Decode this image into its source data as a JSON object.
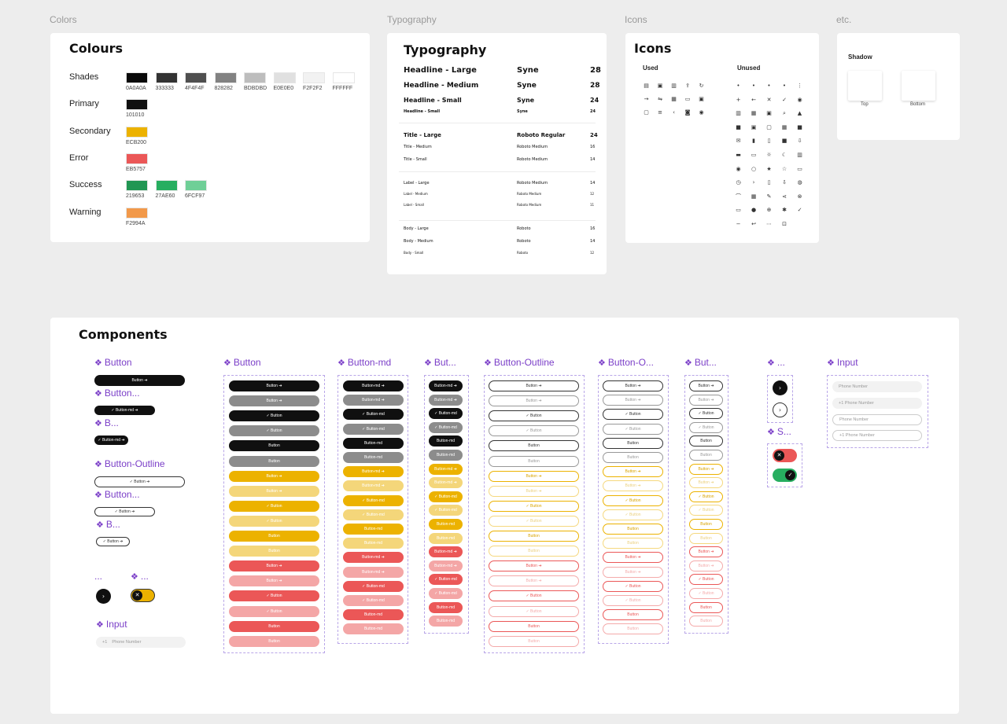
{
  "frame_labels": {
    "colors": "Colors",
    "typography": "Typography",
    "icons": "Icons",
    "etc": "etc."
  },
  "colours": {
    "title": "Colours",
    "rows": [
      {
        "name": "Shades",
        "swatches": [
          {
            "hex": "#0A0A0A",
            "label": "0A0A0A"
          },
          {
            "hex": "#333333",
            "label": "333333"
          },
          {
            "hex": "#4F4F4F",
            "label": "4F4F4F"
          },
          {
            "hex": "#828282",
            "label": "828282"
          },
          {
            "hex": "#BDBDBD",
            "label": "BDBDBD"
          },
          {
            "hex": "#E0E0E0",
            "label": "E0E0E0"
          },
          {
            "hex": "#F2F2F2",
            "label": "F2F2F2"
          },
          {
            "hex": "#FFFFFF",
            "label": "FFFFFF"
          }
        ]
      },
      {
        "name": "Primary",
        "swatches": [
          {
            "hex": "#101010",
            "label": "101010"
          }
        ]
      },
      {
        "name": "Secondary",
        "swatches": [
          {
            "hex": "#ECB200",
            "label": "ECB200"
          }
        ]
      },
      {
        "name": "Error",
        "swatches": [
          {
            "hex": "#EB5757",
            "label": "EB5757"
          }
        ]
      },
      {
        "name": "Success",
        "swatches": [
          {
            "hex": "#219653",
            "label": "219653"
          },
          {
            "hex": "#27AE60",
            "label": "27AE60"
          },
          {
            "hex": "#6FCF97",
            "label": "6FCF97"
          }
        ]
      },
      {
        "name": "Warning",
        "swatches": [
          {
            "hex": "#F2994A",
            "label": "F2994A"
          }
        ]
      }
    ]
  },
  "typography": {
    "title": "Typography",
    "groups": [
      [
        {
          "name": "Headline - Large",
          "font": "Syne",
          "size": "28",
          "fs": 10
        },
        {
          "name": "Headline - Medium",
          "font": "Syne",
          "size": "28",
          "fs": 9
        },
        {
          "name": "Headline - Small",
          "font": "Syne",
          "size": "24",
          "fs": 8
        },
        {
          "name": "Headline - Small",
          "font": "Syne",
          "size": "24",
          "fs": 5
        }
      ],
      [
        {
          "name": "Title - Large",
          "font": "Roboto Regular",
          "size": "24",
          "fs": 7
        },
        {
          "name": "Title - Medium",
          "font": "Roboto Medium",
          "size": "16",
          "fs": 5
        },
        {
          "name": "Title - Small",
          "font": "Roboto Medium",
          "size": "14",
          "fs": 5
        }
      ],
      [
        {
          "name": "Label - Large",
          "font": "Roboto Medium",
          "size": "14",
          "fs": 5
        },
        {
          "name": "Label - Medium",
          "font": "Roboto Medium",
          "size": "12",
          "fs": 4
        },
        {
          "name": "Label - Small",
          "font": "Roboto Medium",
          "size": "11",
          "fs": 4
        }
      ],
      [
        {
          "name": "Body - Large",
          "font": "Roboto",
          "size": "16",
          "fs": 5
        },
        {
          "name": "Body - Medium",
          "font": "Roboto",
          "size": "14",
          "fs": 5
        },
        {
          "name": "Body - Small",
          "font": "Roboto",
          "size": "12",
          "fs": 4
        }
      ]
    ]
  },
  "icons": {
    "title": "Icons",
    "used_label": "Used",
    "unused_label": "Unused",
    "used": [
      "▤",
      "▣",
      "▥",
      "⇪",
      "↻",
      "→",
      "⇋",
      "▦",
      "▭",
      "▣",
      "▢",
      "≡",
      "‹",
      "◙",
      "◉"
    ],
    "unused": [
      "•",
      "•",
      "•",
      "•",
      "⋮",
      "+",
      "←",
      "✕",
      "✓",
      "◉",
      "▥",
      "▦",
      "▣",
      "⌕",
      "▲",
      "■",
      "▣",
      "▢",
      "▦",
      "■",
      "✉",
      "▮",
      "▯",
      "■",
      "⇩",
      "▬",
      "▭",
      "☼",
      "☾",
      "▥",
      "◉",
      "○",
      "★",
      "☆",
      "▭",
      "◷",
      "›",
      "▯",
      "⇩",
      "◍",
      "⌒",
      "▦",
      "✎",
      "⋖",
      "⊗",
      "▭",
      "●",
      "⊕",
      "✱",
      "✓",
      "−",
      "↩",
      "⋯",
      "⊡"
    ]
  },
  "etc": {
    "shadow_title": "Shadow",
    "top": "Top",
    "bottom": "Bottom"
  },
  "components": {
    "title": "Components",
    "t_button": "Button",
    "t_button_dots": "Button...",
    "t_b": "B...",
    "t_button_outline": "Button-Outline",
    "t_dots": "...",
    "t_input": "Input",
    "t_button_md": "Button-md",
    "t_but": "But...",
    "t_button_o": "Button-O...",
    "t_s": "S...",
    "btn_label": "Button",
    "btn_md_label": "Button-md",
    "check": "✓",
    "arrow": "➔",
    "phone_prefix": "+1",
    "phone_placeholder": "Phone Number"
  },
  "colors_map": {
    "black": "#101010",
    "gray": "#8C8C8C",
    "yellow": "#ECB200",
    "yellowLight": "#F4D67A",
    "red": "#EB5757",
    "redLight": "#F4A6A6"
  }
}
